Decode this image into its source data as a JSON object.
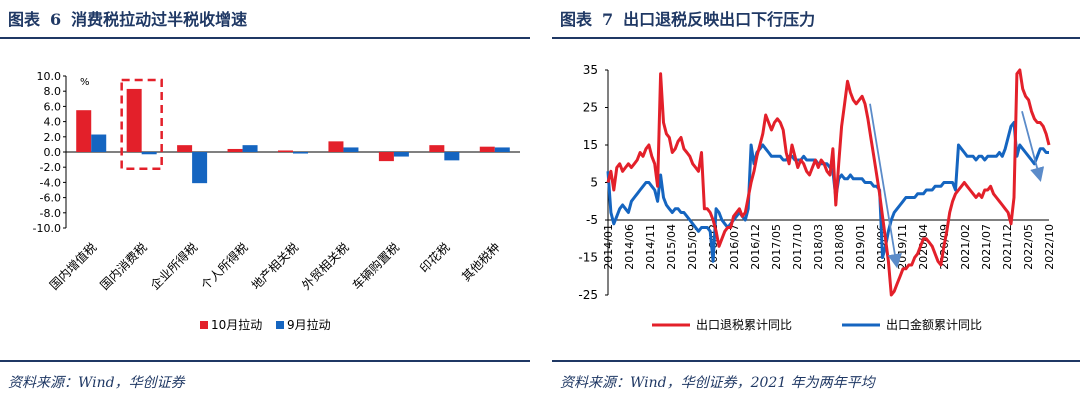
{
  "left": {
    "title_prefix": "图表",
    "title_num": "6",
    "title_text": "消费税拉动过半税收增速",
    "source": "资料来源：Wind，华创证券"
  },
  "right": {
    "title_prefix": "图表",
    "title_num": "7",
    "title_text": "出口退税反映出口下行压力",
    "source": "资料来源：Wind，华创证券，2021 年为两年平均"
  },
  "chart_data": [
    {
      "type": "bar",
      "unit_label": "%",
      "ylim": [
        -10,
        10
      ],
      "yticks": [
        "10.0",
        "8.0",
        "6.0",
        "4.0",
        "2.0",
        "0.0",
        "-2.0",
        "-4.0",
        "-6.0",
        "-8.0",
        "-10.0"
      ],
      "categories": [
        "国内增值税",
        "国内消费税",
        "企业所得税",
        "个人所得税",
        "地产相关税",
        "外贸相关税",
        "车辆购置税",
        "印花税",
        "其他税种"
      ],
      "series": [
        {
          "name": "10月拉动",
          "color": "#e3202a",
          "values": [
            5.5,
            8.3,
            0.9,
            0.4,
            0.2,
            1.4,
            -1.2,
            0.9,
            0.7
          ]
        },
        {
          "name": "9月拉动",
          "color": "#1565c0",
          "values": [
            2.3,
            -0.3,
            -4.1,
            0.9,
            -0.2,
            0.6,
            -0.6,
            -1.1,
            0.6
          ]
        }
      ],
      "highlight_category": "国内消费税",
      "legend_position": "bottom"
    },
    {
      "type": "line",
      "ylim": [
        -25,
        35
      ],
      "yticks": [
        "35",
        "25",
        "15",
        "5",
        "-5",
        "-15",
        "-25"
      ],
      "xticks": [
        "2014/01",
        "2014/06",
        "2014/11",
        "2015/04",
        "2015/09",
        "2016/02",
        "2016/07",
        "2016/12",
        "2017/05",
        "2017/10",
        "2018/03",
        "2018/08",
        "2019/01",
        "2019/06",
        "2019/11",
        "2020/04",
        "2020/09",
        "2021/02",
        "2021/07",
        "2021/12",
        "2022/05",
        "2022/10"
      ],
      "series": [
        {
          "name": "出口退税累计同比",
          "color": "#e3202a",
          "values": [
            5,
            8,
            3,
            9,
            10,
            8,
            9,
            10,
            9,
            10,
            11,
            13,
            12,
            14,
            15,
            12,
            10,
            4,
            34,
            21,
            18,
            17,
            13,
            14,
            16,
            17,
            14,
            13,
            12,
            10,
            9,
            8,
            13,
            -2,
            -2,
            -3,
            -5,
            -8,
            -12,
            -10,
            -8,
            -7,
            -7,
            -4,
            -3,
            -2,
            -4,
            -3,
            1,
            5,
            8,
            12,
            15,
            18,
            23,
            21,
            19,
            21,
            22,
            21,
            19,
            13,
            10,
            15,
            12,
            9,
            11,
            10,
            8,
            7,
            9,
            11,
            9,
            11,
            10,
            8,
            7,
            14,
            -1,
            10,
            20,
            26,
            32,
            29,
            27,
            26,
            27,
            28,
            26,
            22,
            17,
            12,
            7,
            2,
            -4,
            -10,
            -16,
            -25,
            -24,
            -22,
            -20,
            -18,
            -18,
            -17,
            -17,
            -15,
            -14,
            -12,
            -10,
            -10,
            -11,
            -12,
            -14,
            -16,
            -17,
            -12,
            -8,
            -3,
            0,
            2,
            3,
            4,
            5,
            4,
            3,
            2,
            1,
            2,
            1,
            3,
            3,
            4,
            2,
            1,
            0,
            -1,
            -2,
            -3,
            -6,
            1,
            34,
            38,
            30,
            28,
            27,
            24,
            22,
            21,
            21,
            20,
            18,
            15
          ]
        },
        {
          "name": "出口金额累计同比",
          "color": "#1565c0",
          "values": [
            8,
            -3,
            -6,
            -4,
            -2,
            -1,
            -2,
            -3,
            0,
            1,
            2,
            3,
            4,
            5,
            5,
            4,
            3,
            0,
            7,
            1,
            -1,
            -2,
            -3,
            -2,
            -2,
            -3,
            -3,
            -4,
            -5,
            -6,
            -7,
            -8,
            -7,
            -7,
            -7,
            -8,
            -16,
            -2,
            -3,
            -5,
            -6,
            -7,
            -6,
            -5,
            -4,
            -3,
            -4,
            -5,
            -2,
            15,
            10,
            13,
            14,
            15,
            14,
            13,
            12,
            12,
            12,
            12,
            11,
            11,
            12,
            12,
            11,
            11,
            11,
            12,
            11,
            11,
            11,
            11,
            10,
            10,
            10,
            10,
            9,
            8,
            1,
            6,
            7,
            6,
            6,
            7,
            6,
            6,
            6,
            6,
            5,
            5,
            5,
            4,
            4,
            3,
            -15,
            -12,
            -8,
            -5,
            -3,
            -2,
            -1,
            0,
            1,
            1,
            1,
            1,
            2,
            2,
            2,
            3,
            3,
            3,
            4,
            4,
            4,
            5,
            5,
            5,
            5,
            3,
            15,
            14,
            13,
            12,
            12,
            12,
            11,
            12,
            12,
            11,
            12,
            12,
            12,
            12,
            13,
            12,
            14,
            17,
            20,
            21,
            12,
            15,
            14,
            13,
            12,
            11,
            10,
            12,
            14,
            14,
            13,
            13
          ]
        }
      ],
      "legend_position": "bottom"
    }
  ]
}
